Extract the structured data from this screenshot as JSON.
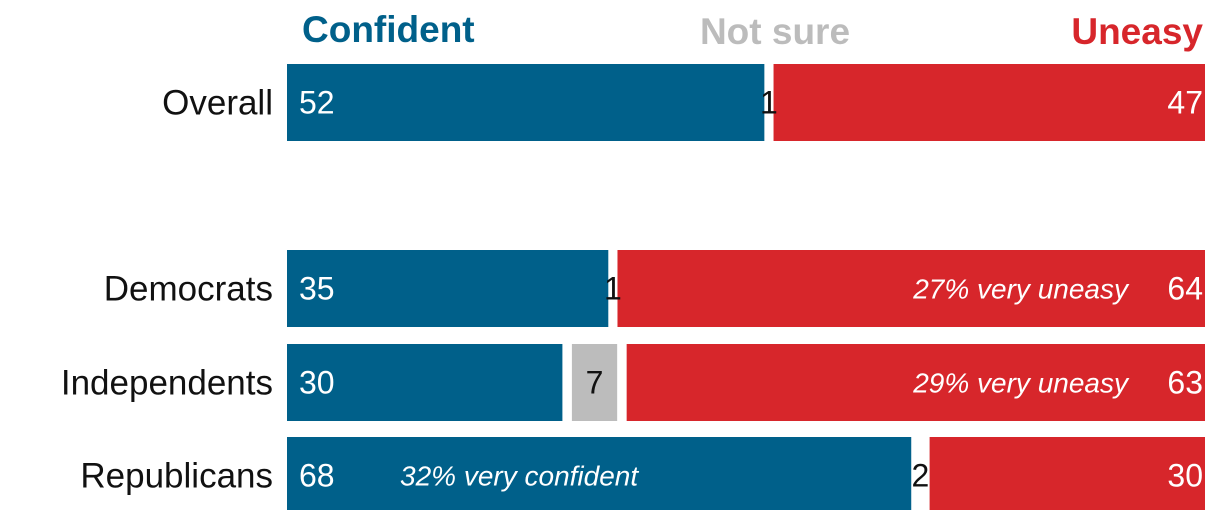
{
  "colors": {
    "confident": "#00608a",
    "not_sure": "#bcbcbc",
    "uneasy": "#d7262b"
  },
  "legend": {
    "confident": "Confident",
    "not_sure": "Not sure",
    "uneasy": "Uneasy"
  },
  "chart_data": {
    "type": "bar",
    "orientation": "horizontal",
    "stacked": true,
    "categories": [
      "Overall",
      "Democrats",
      "Independents",
      "Republicans"
    ],
    "series": [
      {
        "name": "Confident",
        "values": [
          52,
          35,
          30,
          68
        ]
      },
      {
        "name": "Not sure",
        "values": [
          1,
          1,
          7,
          2
        ]
      },
      {
        "name": "Uneasy",
        "values": [
          47,
          64,
          63,
          30
        ]
      }
    ],
    "annotations": [
      {
        "category": "Democrats",
        "series": "Uneasy",
        "text": "27% very uneasy"
      },
      {
        "category": "Independents",
        "series": "Uneasy",
        "text": "29% very uneasy"
      },
      {
        "category": "Republicans",
        "series": "Confident",
        "text": "32% very confident"
      }
    ],
    "xlim": [
      0,
      100
    ],
    "legend_position": "top"
  }
}
